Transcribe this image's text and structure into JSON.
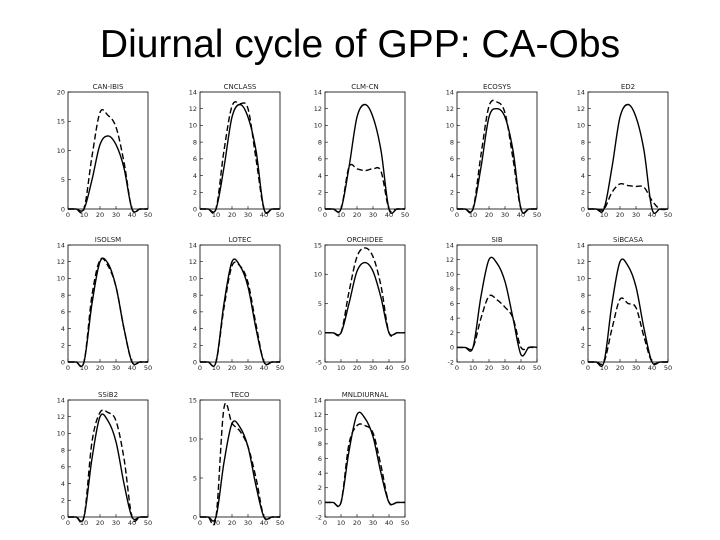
{
  "slide": {
    "title": "Diurnal cycle of GPP: CA-Obs"
  },
  "styles": {
    "solid_color": "#000000",
    "dashed_color": "#000000"
  },
  "chart_data": [
    {
      "type": "line",
      "title": "CAN-IBIS",
      "x": [
        0,
        5,
        10,
        15,
        20,
        25,
        30,
        35,
        40,
        45,
        50
      ],
      "xlim": [
        0,
        50
      ],
      "ylim": [
        0,
        20
      ],
      "xticks": [
        0,
        10,
        20,
        30,
        40,
        50
      ],
      "yticks": [
        0,
        5,
        10,
        15,
        20
      ],
      "series": [
        {
          "style": "solid",
          "values": [
            0,
            0,
            0,
            5,
            11,
            12.5,
            11,
            7,
            0,
            0,
            0
          ]
        },
        {
          "style": "dashed",
          "values": [
            0,
            0,
            0,
            9,
            16.5,
            16,
            14,
            8,
            0,
            0,
            0
          ]
        }
      ]
    },
    {
      "type": "line",
      "title": "CNCLASS",
      "x": [
        0,
        5,
        10,
        15,
        20,
        25,
        30,
        35,
        40,
        45,
        50
      ],
      "xlim": [
        0,
        50
      ],
      "ylim": [
        0,
        14
      ],
      "xticks": [
        0,
        10,
        20,
        30,
        40,
        50
      ],
      "yticks": [
        0,
        2,
        4,
        6,
        8,
        10,
        12,
        14
      ],
      "series": [
        {
          "style": "solid",
          "values": [
            0,
            0,
            0,
            5,
            11,
            12.5,
            11,
            7,
            0,
            0,
            0
          ]
        },
        {
          "style": "dashed",
          "values": [
            0,
            0,
            0,
            7,
            12.3,
            12.6,
            12,
            6,
            0,
            0,
            0
          ]
        }
      ]
    },
    {
      "type": "line",
      "title": "CLM-CN",
      "x": [
        0,
        5,
        10,
        15,
        20,
        25,
        30,
        35,
        40,
        45,
        50
      ],
      "xlim": [
        0,
        50
      ],
      "ylim": [
        0,
        14
      ],
      "xticks": [
        0,
        10,
        20,
        30,
        40,
        50
      ],
      "yticks": [
        0,
        2,
        4,
        6,
        8,
        10,
        12,
        14
      ],
      "series": [
        {
          "style": "solid",
          "values": [
            0,
            0,
            0,
            5,
            11,
            12.5,
            11,
            7,
            0,
            0,
            0
          ]
        },
        {
          "style": "dashed",
          "values": [
            0,
            0,
            0,
            5,
            4.8,
            4.6,
            4.8,
            4.5,
            0,
            0,
            0
          ]
        }
      ]
    },
    {
      "type": "line",
      "title": "ECOSYS",
      "x": [
        0,
        5,
        10,
        15,
        20,
        25,
        30,
        35,
        40,
        45,
        50
      ],
      "xlim": [
        0,
        50
      ],
      "ylim": [
        0,
        14
      ],
      "xticks": [
        0,
        10,
        20,
        30,
        40,
        50
      ],
      "yticks": [
        0,
        2,
        4,
        6,
        8,
        10,
        12,
        14
      ],
      "series": [
        {
          "style": "solid",
          "values": [
            0,
            0,
            0,
            5,
            11,
            12,
            11,
            7,
            0,
            0,
            0
          ]
        },
        {
          "style": "dashed",
          "values": [
            0,
            0,
            0,
            6.5,
            12.3,
            12.8,
            11.5,
            6,
            0,
            0,
            0
          ]
        }
      ]
    },
    {
      "type": "line",
      "title": "ED2",
      "x": [
        0,
        5,
        10,
        15,
        20,
        25,
        30,
        35,
        40,
        45,
        50
      ],
      "xlim": [
        0,
        50
      ],
      "ylim": [
        0,
        14
      ],
      "xticks": [
        0,
        10,
        20,
        30,
        40,
        50
      ],
      "yticks": [
        0,
        2,
        4,
        6,
        8,
        10,
        12,
        14
      ],
      "series": [
        {
          "style": "solid",
          "values": [
            0,
            0,
            0,
            5,
            11,
            12.5,
            11,
            7,
            0,
            0,
            0
          ]
        },
        {
          "style": "dashed",
          "values": [
            0,
            0,
            0,
            2,
            3,
            2.8,
            2.7,
            2.6,
            1,
            0,
            0
          ]
        }
      ]
    },
    {
      "type": "line",
      "title": "ISOLSM",
      "x": [
        0,
        5,
        10,
        15,
        20,
        25,
        30,
        35,
        40,
        45,
        50
      ],
      "xlim": [
        0,
        50
      ],
      "ylim": [
        0,
        14
      ],
      "xticks": [
        0,
        10,
        20,
        30,
        40,
        50
      ],
      "yticks": [
        0,
        2,
        4,
        6,
        8,
        10,
        12,
        14
      ],
      "series": [
        {
          "style": "solid",
          "values": [
            0,
            0,
            0,
            7,
            12,
            11.8,
            9,
            4,
            0,
            0,
            0
          ]
        },
        {
          "style": "dashed",
          "values": [
            0,
            0,
            0,
            8,
            12.2,
            11.5,
            9,
            4,
            0,
            0,
            0
          ]
        }
      ]
    },
    {
      "type": "line",
      "title": "LOTEC",
      "x": [
        0,
        5,
        10,
        15,
        20,
        25,
        30,
        35,
        40,
        45,
        50
      ],
      "xlim": [
        0,
        50
      ],
      "ylim": [
        0,
        14
      ],
      "xticks": [
        0,
        10,
        20,
        30,
        40,
        50
      ],
      "yticks": [
        0,
        2,
        4,
        6,
        8,
        10,
        12,
        14
      ],
      "series": [
        {
          "style": "solid",
          "values": [
            0,
            0,
            0,
            7,
            12,
            11.5,
            9,
            4,
            0,
            0,
            0
          ]
        },
        {
          "style": "dashed",
          "values": [
            0,
            0,
            0,
            6.5,
            11.5,
            11.5,
            9.5,
            4.5,
            0,
            0,
            0
          ]
        }
      ]
    },
    {
      "type": "line",
      "title": "ORCHIDEE",
      "x": [
        0,
        5,
        10,
        15,
        20,
        25,
        30,
        35,
        40,
        45,
        50
      ],
      "xlim": [
        0,
        50
      ],
      "ylim": [
        -5,
        15
      ],
      "xticks": [
        0,
        10,
        20,
        30,
        40,
        50
      ],
      "yticks": [
        -5,
        0,
        5,
        10,
        15
      ],
      "series": [
        {
          "style": "solid",
          "values": [
            0,
            0,
            0,
            5,
            10.5,
            12,
            10.5,
            6,
            0,
            0,
            0
          ]
        },
        {
          "style": "dashed",
          "values": [
            0,
            0,
            0,
            7,
            13,
            14.5,
            13,
            8,
            0,
            0,
            0
          ]
        }
      ]
    },
    {
      "type": "line",
      "title": "SIB",
      "x": [
        0,
        5,
        10,
        15,
        20,
        25,
        30,
        35,
        40,
        45,
        50
      ],
      "xlim": [
        0,
        50
      ],
      "ylim": [
        -2,
        14
      ],
      "xticks": [
        0,
        10,
        20,
        30,
        40,
        50
      ],
      "yticks": [
        -2,
        0,
        2,
        4,
        6,
        8,
        10,
        12,
        14
      ],
      "series": [
        {
          "style": "solid",
          "values": [
            0,
            0,
            0,
            7,
            12,
            11.5,
            9,
            4,
            -1,
            0,
            0
          ]
        },
        {
          "style": "dashed",
          "values": [
            0,
            0,
            0,
            4,
            7,
            6.5,
            5.5,
            4,
            0,
            0,
            0
          ]
        }
      ]
    },
    {
      "type": "line",
      "title": "SiBCASA",
      "x": [
        0,
        5,
        10,
        15,
        20,
        25,
        30,
        35,
        40,
        45,
        50
      ],
      "xlim": [
        0,
        50
      ],
      "ylim": [
        0,
        14
      ],
      "xticks": [
        0,
        10,
        20,
        30,
        40,
        50
      ],
      "yticks": [
        0,
        2,
        4,
        6,
        8,
        10,
        12,
        14
      ],
      "series": [
        {
          "style": "solid",
          "values": [
            0,
            0,
            0,
            7,
            12,
            11.5,
            9,
            4,
            0,
            0,
            0
          ]
        },
        {
          "style": "dashed",
          "values": [
            0,
            0,
            0,
            4,
            7.5,
            7,
            6.5,
            3,
            0,
            0,
            0
          ]
        }
      ]
    },
    {
      "type": "line",
      "title": "SSiB2",
      "x": [
        0,
        5,
        10,
        15,
        20,
        25,
        30,
        35,
        40,
        45,
        50
      ],
      "xlim": [
        0,
        50
      ],
      "ylim": [
        0,
        14
      ],
      "xticks": [
        0,
        10,
        20,
        30,
        40,
        50
      ],
      "yticks": [
        0,
        2,
        4,
        6,
        8,
        10,
        12,
        14
      ],
      "series": [
        {
          "style": "solid",
          "values": [
            0,
            0,
            0,
            7,
            12,
            11.5,
            9,
            4,
            0,
            0,
            0
          ]
        },
        {
          "style": "dashed",
          "values": [
            0,
            0,
            0,
            9,
            12.5,
            12.5,
            11.5,
            7,
            0,
            0,
            0
          ]
        }
      ]
    },
    {
      "type": "line",
      "title": "TECO",
      "x": [
        0,
        5,
        10,
        15,
        20,
        25,
        30,
        35,
        40,
        45,
        50
      ],
      "xlim": [
        0,
        50
      ],
      "ylim": [
        0,
        15
      ],
      "xticks": [
        0,
        10,
        20,
        30,
        40,
        50
      ],
      "yticks": [
        0,
        5,
        10,
        15
      ],
      "series": [
        {
          "style": "solid",
          "values": [
            0,
            0,
            0,
            7,
            12,
            11.5,
            9,
            4,
            0,
            0,
            0
          ]
        },
        {
          "style": "dashed",
          "values": [
            0,
            0,
            0,
            14,
            12,
            11,
            9,
            5,
            0,
            0,
            0
          ]
        }
      ]
    },
    {
      "type": "line",
      "title": "MNLDIURNAL",
      "x": [
        0,
        5,
        10,
        15,
        20,
        25,
        30,
        35,
        40,
        45,
        50
      ],
      "xlim": [
        0,
        50
      ],
      "ylim": [
        -2,
        14
      ],
      "xticks": [
        0,
        10,
        20,
        30,
        40,
        50
      ],
      "yticks": [
        -2,
        0,
        2,
        4,
        6,
        8,
        10,
        12,
        14
      ],
      "series": [
        {
          "style": "solid",
          "values": [
            0,
            0,
            0,
            7,
            12,
            11.5,
            9,
            4,
            0,
            0,
            0
          ]
        },
        {
          "style": "dashed",
          "values": [
            0,
            0,
            0,
            8,
            10.5,
            10.5,
            9.5,
            5,
            0,
            0,
            0
          ]
        }
      ]
    }
  ]
}
